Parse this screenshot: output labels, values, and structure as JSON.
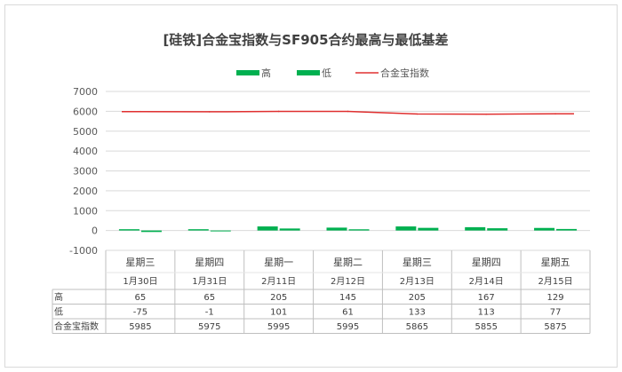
{
  "chart_data": {
    "type": "bar",
    "title": "[硅铁]合金宝指数与SF905合约最高与最低基差",
    "legend_position": "top",
    "grid": true,
    "ylim": [
      -1000,
      7000
    ],
    "yticks": [
      "7000",
      "6000",
      "5000",
      "4000",
      "3000",
      "2000",
      "1000",
      "0",
      "-1000"
    ],
    "categories": [
      {
        "day": "星期三",
        "date": "1月30日"
      },
      {
        "day": "星期四",
        "date": "1月31日"
      },
      {
        "day": "星期一",
        "date": "2月11日"
      },
      {
        "day": "星期二",
        "date": "2月12日"
      },
      {
        "day": "星期三",
        "date": "2月13日"
      },
      {
        "day": "星期四",
        "date": "2月14日"
      },
      {
        "day": "星期五",
        "date": "2月15日"
      }
    ],
    "series": [
      {
        "name": "高",
        "type": "bar",
        "color": "#00b050",
        "values": [
          65,
          65,
          205,
          145,
          205,
          167,
          129
        ]
      },
      {
        "name": "低",
        "type": "bar",
        "color": "#00b050",
        "values": [
          -75,
          -1,
          101,
          61,
          133,
          113,
          77
        ]
      },
      {
        "name": "合金宝指数",
        "type": "line",
        "color": "#e03030",
        "values": [
          5985,
          5975,
          5995,
          5995,
          5865,
          5855,
          5875
        ]
      }
    ],
    "table_rows": [
      {
        "label": "高",
        "values": [
          "65",
          "65",
          "205",
          "145",
          "205",
          "167",
          "129"
        ]
      },
      {
        "label": "低",
        "values": [
          "-75",
          "-1",
          "101",
          "61",
          "133",
          "113",
          "77"
        ]
      },
      {
        "label": "合金宝指数",
        "values": [
          "5985",
          "5975",
          "5995",
          "5995",
          "5865",
          "5855",
          "5875"
        ]
      }
    ]
  }
}
